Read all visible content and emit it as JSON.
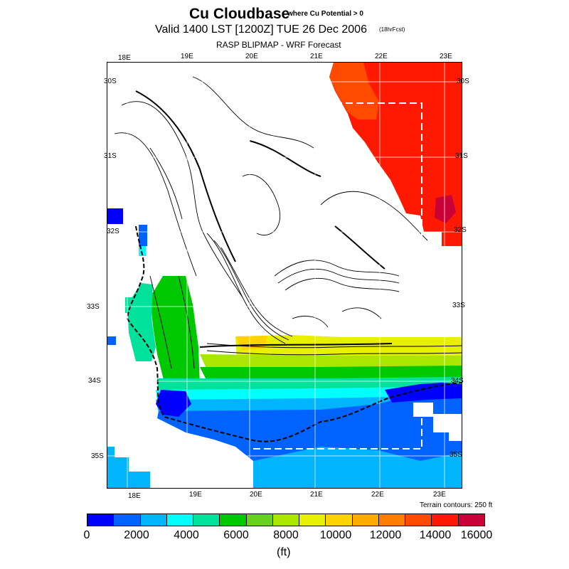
{
  "header": {
    "title": "Cu Cloudbase",
    "subtitle": "where Cu Potential > 0",
    "valid_line": "Valid 1400 LST [1200Z] TUE 26 Dec 2006",
    "forecast_note": "(18hrFcst)",
    "source": "RASP BLIPMAP - WRF Forecast"
  },
  "map": {
    "top_longitudes": [
      "18E",
      "19E",
      "20E",
      "21E",
      "22E",
      "23E"
    ],
    "bottom_longitudes": [
      "18E",
      "19E",
      "20E",
      "21E",
      "22E",
      "23E"
    ],
    "left_latitudes": [
      "30S",
      "31S",
      "32S",
      "33S",
      "34S",
      "35S"
    ],
    "right_latitudes": [
      "30S",
      "31S",
      "32S",
      "33S",
      "34S",
      "35S"
    ],
    "terrain_note": "Terrain contours: 250 ft"
  },
  "colorbar": {
    "ticks": [
      "0",
      "2000",
      "4000",
      "6000",
      "8000",
      "10000",
      "12000",
      "14000",
      "16000"
    ],
    "unit": "(ft)",
    "colors": [
      "#0000ff",
      "#0063ff",
      "#00b4ff",
      "#00ffff",
      "#00e19b",
      "#00c800",
      "#64d21e",
      "#aae600",
      "#e6f000",
      "#ffd200",
      "#ffaa00",
      "#ff7d00",
      "#ff4b00",
      "#ff1900",
      "#c80037"
    ]
  },
  "legend_colors": {
    "deep_blue": "#0000ff",
    "blue": "#0063ff",
    "light_blue": "#00b4ff",
    "cyan": "#00ffff",
    "teal": "#00e19b",
    "green": "#00c800",
    "yellow_green": "#aae600",
    "yellow": "#e6f000",
    "orange": "#ffaa00",
    "red_orange": "#ff4b00",
    "red": "#ff1900",
    "crimson": "#c80037"
  }
}
